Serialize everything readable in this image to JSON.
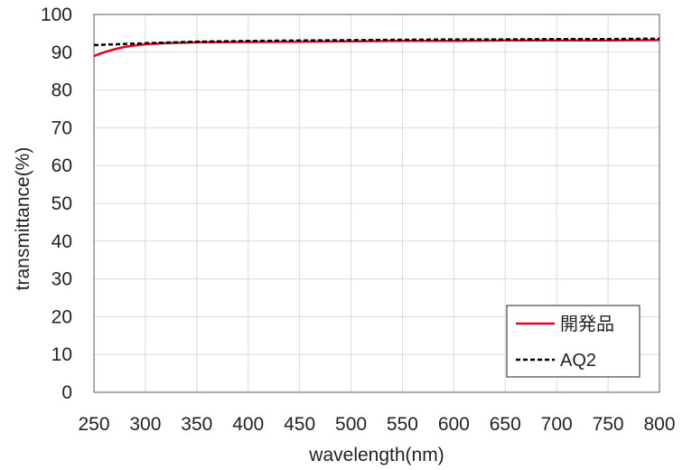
{
  "chart_data": {
    "type": "line",
    "xlabel": "wavelength(nm)",
    "ylabel": "transmittance(%)",
    "xlim": [
      250,
      800
    ],
    "ylim": [
      0,
      100
    ],
    "xticks": [
      250,
      300,
      350,
      400,
      450,
      500,
      550,
      600,
      650,
      700,
      750,
      800
    ],
    "yticks": [
      0,
      10,
      20,
      30,
      40,
      50,
      60,
      70,
      80,
      90,
      100
    ],
    "grid": true,
    "legend_position": "bottom-right",
    "series": [
      {
        "name": "開発品",
        "color": "#e8001c",
        "style": "solid",
        "x": [
          250,
          260,
          270,
          280,
          290,
          300,
          320,
          350,
          400,
          450,
          500,
          550,
          600,
          650,
          700,
          750,
          800
        ],
        "y": [
          89.0,
          90.0,
          90.8,
          91.4,
          91.8,
          92.1,
          92.4,
          92.6,
          92.7,
          92.8,
          92.9,
          93.0,
          93.0,
          93.1,
          93.1,
          93.1,
          93.2
        ]
      },
      {
        "name": "AQ2",
        "color": "#000000",
        "style": "dashed",
        "x": [
          250,
          300,
          350,
          400,
          450,
          500,
          550,
          600,
          650,
          700,
          750,
          800
        ],
        "y": [
          91.9,
          92.4,
          92.8,
          93.0,
          93.1,
          93.2,
          93.3,
          93.4,
          93.4,
          93.5,
          93.5,
          93.6
        ]
      }
    ]
  }
}
